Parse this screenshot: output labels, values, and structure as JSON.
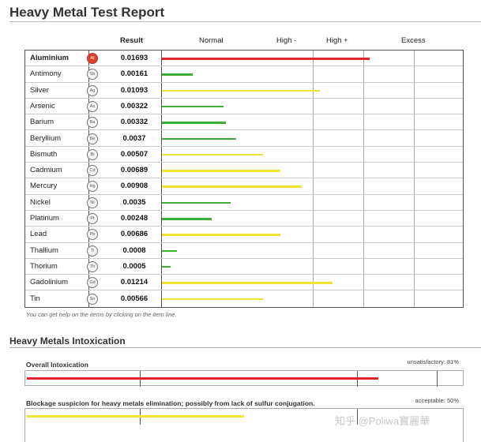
{
  "report": {
    "title": "Heavy Metal Test Report"
  },
  "columns": {
    "result": "Result",
    "normal": "Normal",
    "high_minus": "High -",
    "high_plus": "High +",
    "excess": "Excess"
  },
  "colors": {
    "red": "#e0262b",
    "green": "#3fae35",
    "yellow": "#f2e233"
  },
  "metals": [
    {
      "name": "Aluminium",
      "symbol": "Al",
      "result": "0.01693",
      "level": 0.692,
      "color": "red"
    },
    {
      "name": "Antimony",
      "symbol": "Sb",
      "result": "0.00161",
      "level": 0.103,
      "color": "green"
    },
    {
      "name": "Silver",
      "symbol": "Ag",
      "result": "0.01093",
      "level": 0.527,
      "color": "yellow"
    },
    {
      "name": "Arsenic",
      "symbol": "As",
      "result": "0.00322",
      "level": 0.206,
      "color": "green"
    },
    {
      "name": "Barium",
      "symbol": "Ba",
      "result": "0.00332",
      "level": 0.214,
      "color": "green"
    },
    {
      "name": "Beryllium",
      "symbol": "Be",
      "result": "0.0037",
      "level": 0.247,
      "color": "green"
    },
    {
      "name": "Bismuth",
      "symbol": "Bi",
      "result": "0.00507",
      "level": 0.338,
      "color": "yellow"
    },
    {
      "name": "Cadmium",
      "symbol": "Cd",
      "result": "0.00689",
      "level": 0.395,
      "color": "yellow"
    },
    {
      "name": "Mercury",
      "symbol": "Hg",
      "result": "0.00908",
      "level": 0.465,
      "color": "yellow"
    },
    {
      "name": "Nickel",
      "symbol": "Ni",
      "result": "0.0035",
      "level": 0.23,
      "color": "green"
    },
    {
      "name": "Platinum",
      "symbol": "Pt",
      "result": "0.00248",
      "level": 0.165,
      "color": "green"
    },
    {
      "name": "Lead",
      "symbol": "Pb",
      "result": "0.00686",
      "level": 0.395,
      "color": "yellow"
    },
    {
      "name": "Thallium",
      "symbol": "Tl",
      "result": "0.0008",
      "level": 0.049,
      "color": "green"
    },
    {
      "name": "Thorium",
      "symbol": "Th",
      "result": "0.0005",
      "level": 0.03,
      "color": "green"
    },
    {
      "name": "Gadolinium",
      "symbol": "Gd",
      "result": "0.01214",
      "level": 0.568,
      "color": "yellow"
    },
    {
      "name": "Tin",
      "symbol": "Sn",
      "result": "0.00566",
      "level": 0.337,
      "color": "yellow"
    }
  ],
  "help_note": "You can get help on the items by clicking on the item line.",
  "intoxication": {
    "title": "Heavy Metals Intoxication",
    "overall": {
      "label": "Overall Intoxication",
      "status": "unsatisfactory: 81%",
      "level": 0.81,
      "color": "red"
    },
    "blockage": {
      "label": "Blockage suspicion for heavy metals elimination; possibly from lack of sulfur conjugation.",
      "status": "acceptable: 50%",
      "level": 0.5,
      "color": "yellow"
    }
  },
  "watermark": "知乎 @Poliwa寶麗華"
}
